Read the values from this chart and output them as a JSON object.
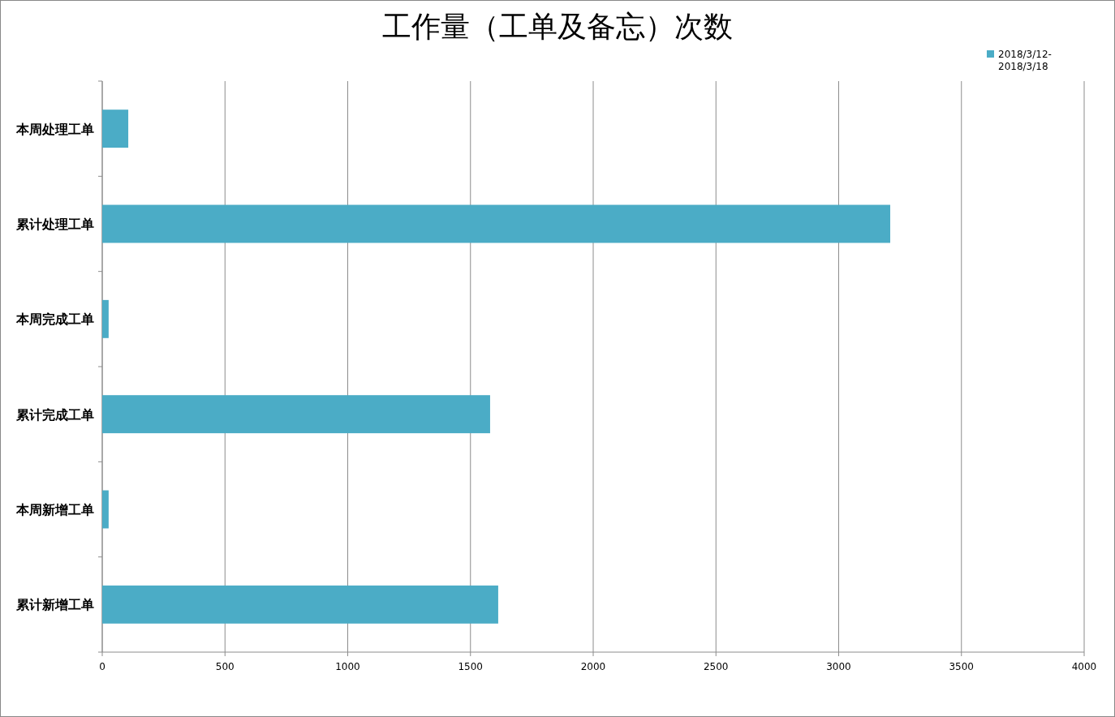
{
  "chart_data": {
    "type": "bar",
    "orientation": "horizontal",
    "title": "工作量（工单及备忘）次数",
    "categories": [
      "本周处理工单",
      "累计处理工单",
      "本周完成工单",
      "累计完成工单",
      "本周新增工单",
      "累计新增工单"
    ],
    "series": [
      {
        "name": "2018/3/12-2018/3/18",
        "color": "#4bacc6",
        "values": [
          106,
          3210,
          26,
          1580,
          26,
          1613
        ]
      }
    ],
    "xlim": [
      0,
      4000
    ],
    "xticks": [
      0,
      500,
      1000,
      1500,
      2000,
      2500,
      3000,
      3500,
      4000
    ],
    "grid": "x",
    "legend": "top right"
  }
}
